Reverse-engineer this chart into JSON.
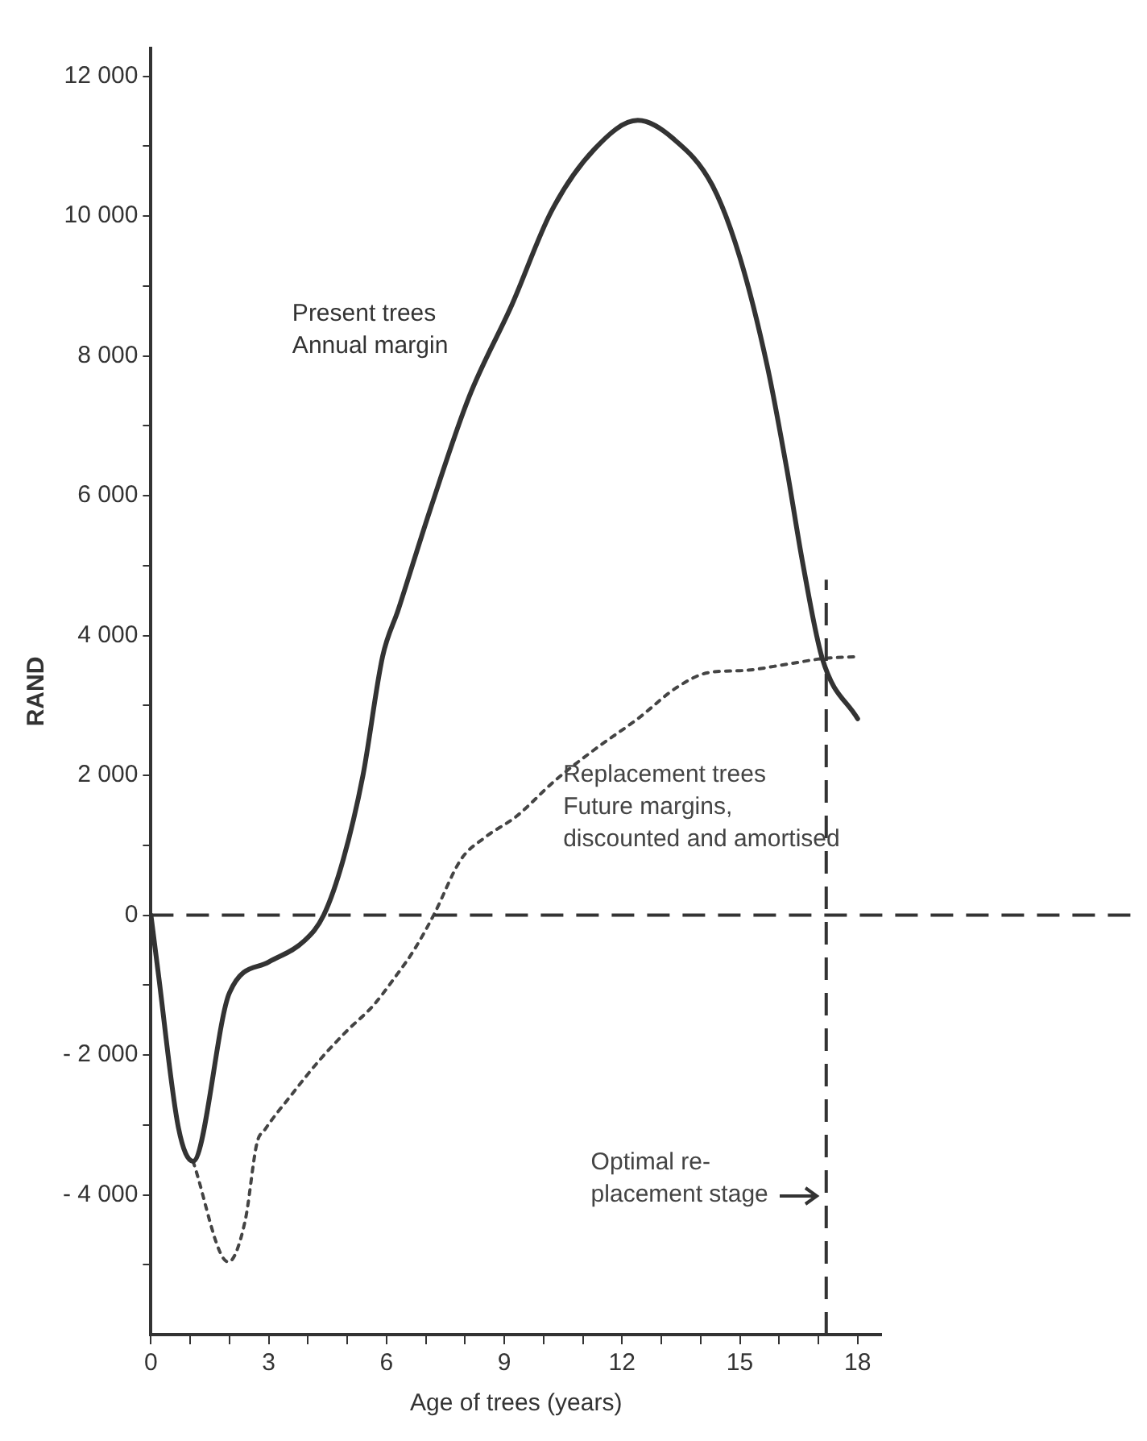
{
  "chart_data": {
    "type": "line",
    "xlabel": "Age of trees (years)",
    "ylabel": "RAND",
    "xlim": [
      0,
      18.6
    ],
    "ylim": [
      -6000,
      12400
    ],
    "xticks": [
      0,
      {
        "value": 1,
        "label": null
      },
      {
        "value": 2,
        "label": null
      },
      3,
      {
        "value": 4,
        "label": null
      },
      {
        "value": 5,
        "label": null
      },
      6,
      {
        "value": 7,
        "label": null
      },
      {
        "value": 8,
        "label": null
      },
      9,
      {
        "value": 10,
        "label": null
      },
      {
        "value": 11,
        "label": null
      },
      12,
      {
        "value": 13,
        "label": null
      },
      {
        "value": 14,
        "label": null
      },
      15,
      {
        "value": 16,
        "label": null
      },
      {
        "value": 17,
        "label": null
      },
      18
    ],
    "yticks": [
      {
        "value": -5000,
        "label": null
      },
      {
        "value": -4000,
        "label": "- 4 000"
      },
      {
        "value": -3000,
        "label": null
      },
      {
        "value": -2000,
        "label": "- 2 000"
      },
      {
        "value": -1000,
        "label": null
      },
      0,
      {
        "value": 1000,
        "label": null
      },
      {
        "value": 2000,
        "label": "2 000"
      },
      {
        "value": 3000,
        "label": null
      },
      {
        "value": 4000,
        "label": "4 000"
      },
      {
        "value": 5000,
        "label": null
      },
      {
        "value": 6000,
        "label": "6 000"
      },
      {
        "value": 7000,
        "label": null
      },
      {
        "value": 8000,
        "label": "8 000"
      },
      {
        "value": 9000,
        "label": null
      },
      {
        "value": 10000,
        "label": "10 000"
      },
      {
        "value": 11000,
        "label": null
      },
      {
        "value": 12000,
        "label": "12 000"
      }
    ],
    "grid": false,
    "legend": false,
    "marker": "none",
    "series": [
      {
        "name": "Present trees\nAnnual margin",
        "color": "#333333",
        "line_style": "solid",
        "x": [
          0,
          0.18,
          0.7,
          1.07,
          2.0,
          3.0,
          3.9,
          4.4,
          4.9,
          5.4,
          5.9,
          6.3,
          7.1,
          8.1,
          9.2,
          10.2,
          11.3,
          12.4,
          13.3,
          14.3,
          15.0,
          15.7,
          16.2,
          16.6,
          17.1,
          18.0
        ],
        "values": [
          0,
          -800,
          -3040,
          -3520,
          -1110,
          -670,
          -370,
          0,
          800,
          2000,
          3700,
          4370,
          5780,
          7410,
          8740,
          10070,
          10960,
          11370,
          11110,
          10440,
          9410,
          7850,
          6370,
          5040,
          3670,
          2810
        ]
      },
      {
        "name": "Replacement trees\nFuture margins,\ndiscounted and amortised",
        "color": "#444444",
        "line_style": "dotted",
        "x": [
          1.07,
          1.97,
          2.4,
          2.7,
          2.9,
          3.55,
          4.3,
          5.0,
          5.65,
          6.2,
          6.7,
          7.2,
          7.9,
          8.5,
          9.3,
          10.3,
          11.3,
          12.4,
          13.4,
          14.2,
          15.1,
          16.2,
          17.1,
          18.0
        ],
        "values": [
          -3520,
          -4960,
          -4370,
          -3260,
          -3070,
          -2590,
          -2070,
          -1650,
          -1300,
          -900,
          -500,
          0,
          800,
          1110,
          1410,
          1930,
          2370,
          2810,
          3260,
          3470,
          3500,
          3590,
          3670,
          3700
        ]
      }
    ],
    "ref_lines": [
      {
        "axis": "y",
        "value": 0,
        "line_style": "dashed"
      },
      {
        "axis": "x",
        "value": 17.2,
        "line_style": "dashed"
      }
    ],
    "annotations": [
      {
        "text": "Optimal re-\nplacement stage",
        "x": 17.2,
        "y": -4000
      }
    ]
  }
}
